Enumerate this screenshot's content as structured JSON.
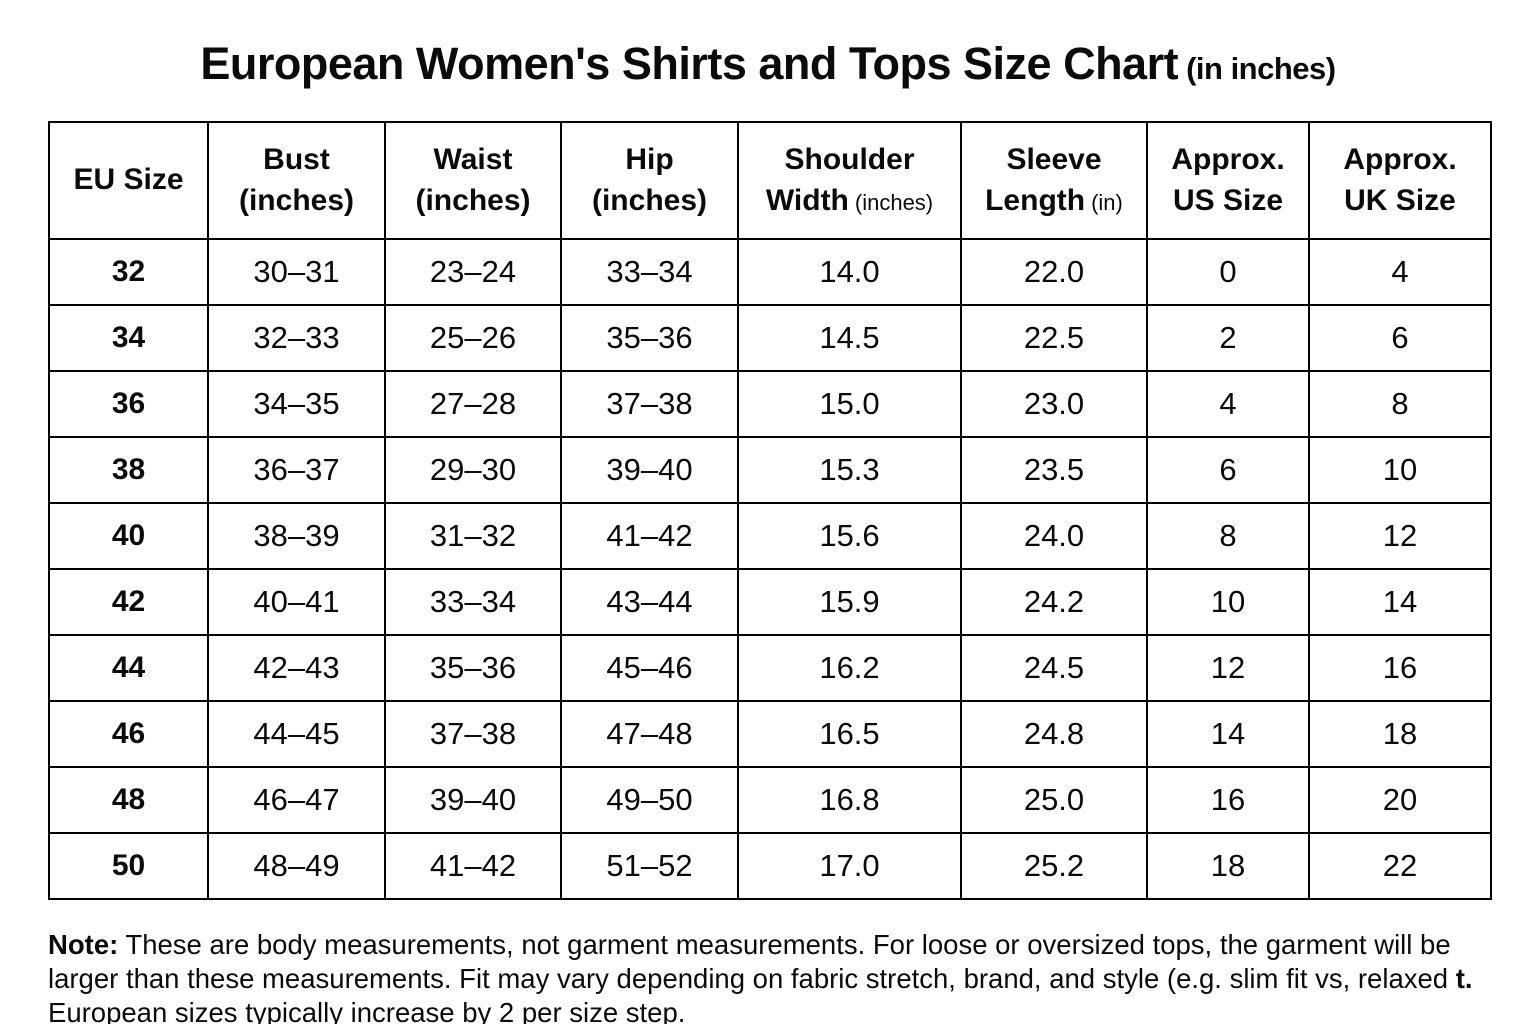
{
  "title": {
    "main": "European Women's Shirts and Tops Size Chart",
    "unit": "(in inches)"
  },
  "table": {
    "headers": [
      {
        "title": "EU Size"
      },
      {
        "title": "Bust",
        "line2": "(inches)"
      },
      {
        "title": "Waist",
        "line2": "(inches)"
      },
      {
        "title": "Hip",
        "line2": "(inches)"
      },
      {
        "title": "Shoulder",
        "line2": "Width",
        "unit": "(inches)"
      },
      {
        "title": "Sleeve",
        "line2": "Length",
        "unit": "(in)"
      },
      {
        "title": "Approx.",
        "line2": "US Size"
      },
      {
        "title": "Approx.",
        "line2": "UK Size"
      }
    ]
  },
  "chart_data": {
    "type": "table",
    "title": "European Women's Shirts and Tops Size Chart (in inches)",
    "columns": [
      "EU Size",
      "Bust (inches)",
      "Waist (inches)",
      "Hip (inches)",
      "Shoulder Width (inches)",
      "Sleeve Length (in)",
      "Approx. US Size",
      "Approx. UK Size"
    ],
    "rows": [
      [
        "32",
        "30–31",
        "23–24",
        "33–34",
        "14.0",
        "22.0",
        "0",
        "4"
      ],
      [
        "34",
        "32–33",
        "25–26",
        "35–36",
        "14.5",
        "22.5",
        "2",
        "6"
      ],
      [
        "36",
        "34–35",
        "27–28",
        "37–38",
        "15.0",
        "23.0",
        "4",
        "8"
      ],
      [
        "38",
        "36–37",
        "29–30",
        "39–40",
        "15.3",
        "23.5",
        "6",
        "10"
      ],
      [
        "40",
        "38–39",
        "31–32",
        "41–42",
        "15.6",
        "24.0",
        "8",
        "12"
      ],
      [
        "42",
        "40–41",
        "33–34",
        "43–44",
        "15.9",
        "24.2",
        "10",
        "14"
      ],
      [
        "44",
        "42–43",
        "35–36",
        "45–46",
        "16.2",
        "24.5",
        "12",
        "16"
      ],
      [
        "46",
        "44–45",
        "37–38",
        "47–48",
        "16.5",
        "24.8",
        "14",
        "18"
      ],
      [
        "48",
        "46–47",
        "39–40",
        "49–50",
        "16.8",
        "25.0",
        "16",
        "20"
      ],
      [
        "50",
        "48–49",
        "41–42",
        "51–52",
        "17.0",
        "25.2",
        "18",
        "22"
      ]
    ]
  },
  "note": {
    "label": "Note:",
    "text1": " These are body measurements, not garment measurements. For loose or oversized tops, the garment will be larger than these measurements. Fit may vary depending on fabric stretch, brand, and style (e.g. slim fit vs, relaxed ",
    "bold2": "t.",
    "text2": " European sizes typically increase by 2 per size step."
  }
}
